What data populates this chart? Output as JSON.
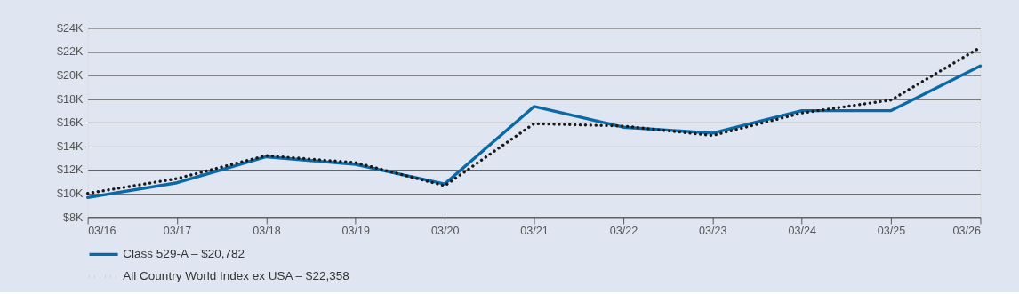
{
  "chart_data": {
    "type": "line",
    "categories": [
      "03/16",
      "03/17",
      "03/18",
      "03/19",
      "03/20",
      "03/21",
      "03/22",
      "03/23",
      "03/24",
      "03/25",
      "03/26"
    ],
    "series": [
      {
        "name": "Class 529-A – $20,782",
        "color": "#0a6aa8",
        "line_style": "solid",
        "values": [
          9650,
          10900,
          13100,
          12450,
          10800,
          17350,
          15600,
          15100,
          17000,
          17000,
          20782
        ]
      },
      {
        "name": "All Country World Index ex USA – $22,358",
        "color": "#1a1a1a",
        "line_style": "dotted",
        "values": [
          10000,
          11250,
          13200,
          12600,
          10650,
          15900,
          15700,
          14900,
          16800,
          17900,
          22358
        ]
      }
    ],
    "ylim": [
      8000,
      24000
    ],
    "yticks": [
      {
        "value": 8000,
        "label": "$8K"
      },
      {
        "value": 10000,
        "label": "$10K"
      },
      {
        "value": 12000,
        "label": "$12K"
      },
      {
        "value": 14000,
        "label": "$14K"
      },
      {
        "value": 16000,
        "label": "$16K"
      },
      {
        "value": 18000,
        "label": "$18K"
      },
      {
        "value": 20000,
        "label": "$20K"
      },
      {
        "value": 22000,
        "label": "$22K"
      },
      {
        "value": 24000,
        "label": "$24K"
      }
    ],
    "grid": "y",
    "legend": "bottom left",
    "marker": "none"
  }
}
